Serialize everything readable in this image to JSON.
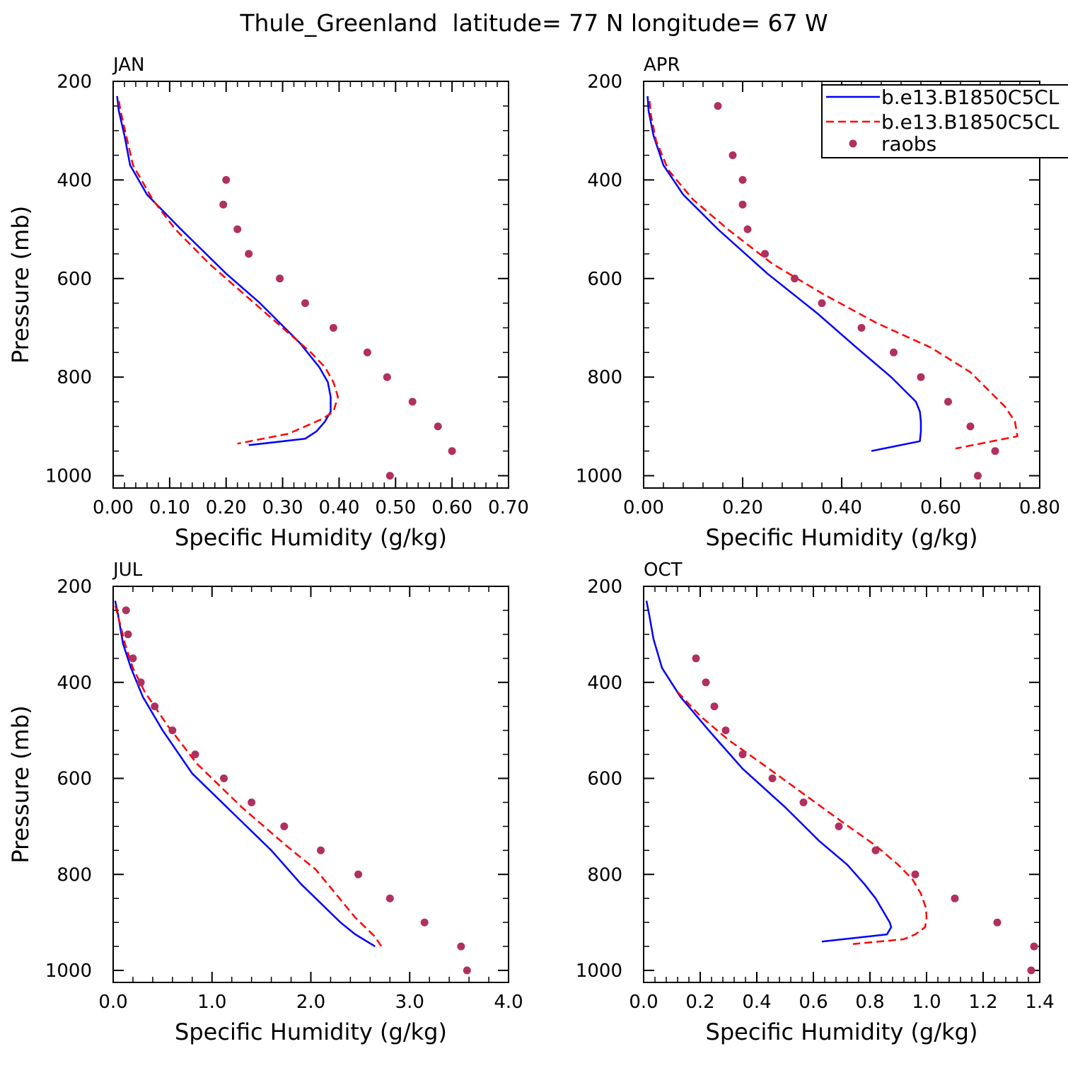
{
  "figure": {
    "title": "Thule_Greenland  latitude= 77 N longitude= 67 W"
  },
  "legend": {
    "entries": [
      {
        "label": "b.e13.B1850C5CL",
        "style": "solid",
        "color": "#0000ff"
      },
      {
        "label": "b.e13.B1850C5CL",
        "style": "dashed",
        "color": "#ff0000"
      },
      {
        "label": "raobs",
        "style": "marker",
        "color": "#b03060"
      }
    ]
  },
  "colors": {
    "series1": "#0000ff",
    "series2": "#ff0000",
    "obs": "#b03060"
  },
  "chart_data": [
    {
      "type": "line",
      "panel_label": "JAN",
      "xlabel": "Specific Humidity (g/kg)",
      "ylabel": "Pressure (mb)",
      "xlim": [
        0,
        0.7
      ],
      "ylim": [
        1025,
        200
      ],
      "y_inverted": true,
      "xticks": [
        0,
        0.1,
        0.2,
        0.3,
        0.4,
        0.5,
        0.6,
        0.7
      ],
      "xtick_labels": [
        "0.00",
        "0.10",
        "0.20",
        "0.30",
        "0.40",
        "0.50",
        "0.60",
        "0.70"
      ],
      "yticks": [
        200,
        400,
        600,
        800,
        1000
      ],
      "ytick_labels": [
        "200",
        "400",
        "600",
        "800",
        "1000"
      ],
      "series": [
        {
          "style": "solid",
          "color": "#0000ff",
          "x": [
            0.007,
            0.01,
            0.02,
            0.03,
            0.06,
            0.12,
            0.2,
            0.26,
            0.33,
            0.365,
            0.38,
            0.385,
            0.385,
            0.375,
            0.36,
            0.34,
            0.24
          ],
          "y": [
            230,
            260,
            310,
            370,
            430,
            500,
            590,
            650,
            730,
            780,
            810,
            840,
            870,
            890,
            910,
            925,
            938
          ]
        },
        {
          "style": "dashed",
          "color": "#ff0000",
          "x": [
            0.01,
            0.015,
            0.025,
            0.035,
            0.07,
            0.11,
            0.17,
            0.25,
            0.31,
            0.35,
            0.375,
            0.39,
            0.398,
            0.39,
            0.37,
            0.34,
            0.31,
            0.22
          ],
          "y": [
            240,
            270,
            320,
            370,
            440,
            500,
            570,
            650,
            710,
            750,
            780,
            810,
            840,
            870,
            885,
            900,
            915,
            935
          ]
        }
      ],
      "observations": {
        "x": [
          0.2,
          0.195,
          0.22,
          0.24,
          0.295,
          0.34,
          0.39,
          0.45,
          0.485,
          0.53,
          0.575,
          0.6,
          0.49
        ],
        "y": [
          400,
          450,
          500,
          550,
          600,
          650,
          700,
          750,
          800,
          850,
          900,
          950,
          1000
        ]
      }
    },
    {
      "type": "line",
      "panel_label": "APR",
      "xlabel": "Specific Humidity (g/kg)",
      "ylabel": "",
      "xlim": [
        0,
        0.8
      ],
      "ylim": [
        1025,
        200
      ],
      "y_inverted": true,
      "xticks": [
        0,
        0.2,
        0.4,
        0.6,
        0.8
      ],
      "xtick_labels": [
        "0.00",
        "0.20",
        "0.40",
        "0.60",
        "0.80"
      ],
      "yticks": [
        200,
        400,
        600,
        800,
        1000
      ],
      "ytick_labels": [
        "200",
        "400",
        "600",
        "800",
        "1000"
      ],
      "series": [
        {
          "style": "solid",
          "color": "#0000ff",
          "x": [
            0.008,
            0.01,
            0.02,
            0.04,
            0.08,
            0.15,
            0.25,
            0.35,
            0.43,
            0.5,
            0.53,
            0.55,
            0.558,
            0.56,
            0.56,
            0.558,
            0.46
          ],
          "y": [
            230,
            260,
            310,
            370,
            430,
            500,
            590,
            670,
            740,
            800,
            830,
            850,
            870,
            890,
            910,
            930,
            950
          ]
        },
        {
          "style": "dashed",
          "color": "#ff0000",
          "x": [
            0.012,
            0.015,
            0.025,
            0.05,
            0.1,
            0.17,
            0.26,
            0.36,
            0.47,
            0.58,
            0.66,
            0.7,
            0.73,
            0.75,
            0.755,
            0.63
          ],
          "y": [
            240,
            270,
            320,
            380,
            440,
            500,
            570,
            630,
            690,
            740,
            790,
            830,
            860,
            890,
            920,
            945
          ]
        }
      ],
      "observations": {
        "x": [
          0.15,
          0.18,
          0.2,
          0.2,
          0.21,
          0.245,
          0.305,
          0.36,
          0.44,
          0.505,
          0.56,
          0.615,
          0.66,
          0.71,
          0.675
        ],
        "y": [
          250,
          350,
          400,
          450,
          500,
          550,
          600,
          650,
          700,
          750,
          800,
          850,
          900,
          950,
          1000
        ]
      }
    },
    {
      "type": "line",
      "panel_label": "JUL",
      "xlabel": "Specific Humidity (g/kg)",
      "ylabel": "Pressure (mb)",
      "xlim": [
        0,
        4
      ],
      "ylim": [
        1025,
        200
      ],
      "y_inverted": true,
      "xticks": [
        0,
        1,
        2,
        3,
        4
      ],
      "xtick_labels": [
        "0.0",
        "1.0",
        "2.0",
        "3.0",
        "4.0"
      ],
      "yticks": [
        200,
        400,
        600,
        800,
        1000
      ],
      "ytick_labels": [
        "200",
        "400",
        "600",
        "800",
        "1000"
      ],
      "series": [
        {
          "style": "solid",
          "color": "#0000ff",
          "x": [
            0.02,
            0.05,
            0.1,
            0.18,
            0.3,
            0.5,
            0.8,
            1.2,
            1.6,
            1.9,
            2.1,
            2.3,
            2.45,
            2.65
          ],
          "y": [
            230,
            260,
            320,
            370,
            430,
            500,
            590,
            670,
            750,
            820,
            860,
            900,
            925,
            950
          ]
        },
        {
          "style": "dashed",
          "color": "#ff0000",
          "x": [
            0.02,
            0.06,
            0.12,
            0.2,
            0.32,
            0.55,
            0.85,
            1.3,
            1.75,
            2.05,
            2.25,
            2.45,
            2.65,
            2.73
          ],
          "y": [
            240,
            270,
            320,
            370,
            420,
            490,
            570,
            660,
            740,
            790,
            840,
            890,
            930,
            955
          ]
        }
      ],
      "observations": {
        "x": [
          0.13,
          0.15,
          0.2,
          0.28,
          0.42,
          0.6,
          0.83,
          1.12,
          1.4,
          1.73,
          2.1,
          2.48,
          2.8,
          3.15,
          3.52,
          3.58
        ],
        "y": [
          250,
          300,
          350,
          400,
          450,
          500,
          550,
          600,
          650,
          700,
          750,
          800,
          850,
          900,
          950,
          1000
        ]
      }
    },
    {
      "type": "line",
      "panel_label": "OCT",
      "xlabel": "Specific Humidity (g/kg)",
      "ylabel": "",
      "xlim": [
        0,
        1.4
      ],
      "ylim": [
        1025,
        200
      ],
      "y_inverted": true,
      "xticks": [
        0,
        0.2,
        0.4,
        0.6,
        0.8,
        1.0,
        1.2,
        1.4
      ],
      "xtick_labels": [
        "0.0",
        "0.2",
        "0.4",
        "0.6",
        "0.8",
        "1.0",
        "1.2",
        "1.4"
      ],
      "yticks": [
        200,
        400,
        600,
        800,
        1000
      ],
      "ytick_labels": [
        "200",
        "400",
        "600",
        "800",
        "1000"
      ],
      "series": [
        {
          "style": "solid",
          "color": "#0000ff",
          "x": [
            0.01,
            0.02,
            0.035,
            0.065,
            0.13,
            0.23,
            0.35,
            0.5,
            0.62,
            0.72,
            0.78,
            0.82,
            0.85,
            0.87,
            0.875,
            0.86,
            0.63
          ],
          "y": [
            230,
            260,
            310,
            370,
            430,
            500,
            580,
            660,
            730,
            780,
            820,
            850,
            880,
            900,
            910,
            925,
            940
          ]
        },
        {
          "style": "dashed",
          "color": "#ff0000",
          "x": [
            0.12,
            0.2,
            0.3,
            0.42,
            0.56,
            0.7,
            0.82,
            0.9,
            0.95,
            0.98,
            0.998,
            1.0,
            0.995,
            0.96,
            0.92,
            0.74
          ],
          "y": [
            420,
            470,
            520,
            570,
            630,
            690,
            740,
            780,
            810,
            840,
            870,
            890,
            910,
            925,
            935,
            945
          ]
        }
      ],
      "observations": {
        "x": [
          0.185,
          0.22,
          0.25,
          0.29,
          0.35,
          0.455,
          0.565,
          0.69,
          0.82,
          0.96,
          1.1,
          1.25,
          1.38,
          1.37
        ],
        "y": [
          350,
          400,
          450,
          500,
          550,
          600,
          650,
          700,
          750,
          800,
          850,
          900,
          950,
          1000
        ]
      }
    }
  ]
}
